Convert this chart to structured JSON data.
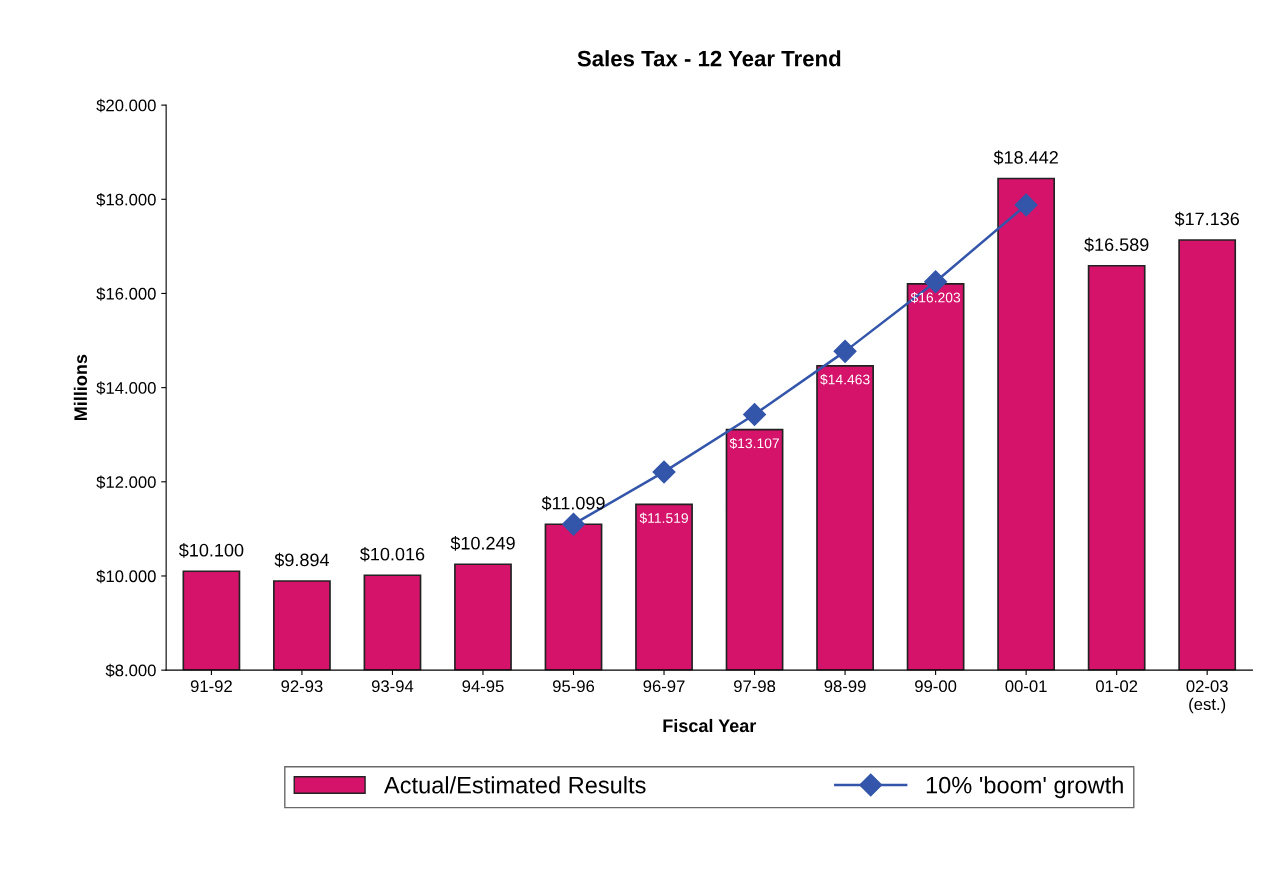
{
  "chart_data": {
    "type": "bar",
    "title": "Sales Tax - 12 Year Trend",
    "xlabel": "Fiscal Year",
    "ylabel": "Millions",
    "categories": [
      "91-92",
      "92-93",
      "93-94",
      "94-95",
      "95-96",
      "96-97",
      "97-98",
      "98-99",
      "99-00",
      "00-01",
      "01-02",
      "02-03\n(est.)"
    ],
    "series": [
      {
        "name": "Actual/Estimated Results",
        "type": "bar",
        "color": "#d5136b",
        "values": [
          10.1,
          9.894,
          10.016,
          10.249,
          11.099,
          11.519,
          13.107,
          14.463,
          16.203,
          18.442,
          16.589,
          17.136
        ],
        "value_labels": [
          "$10.100",
          "$9.894",
          "$10.016",
          "$10.249",
          "$11.099",
          "$11.519",
          "$13.107",
          "$14.463",
          "$16.203",
          "$18.442",
          "$16.589",
          "$17.136"
        ]
      },
      {
        "name": "10% 'boom' growth",
        "type": "line",
        "color": "#3355aa",
        "marker": "diamond",
        "values": [
          null,
          null,
          null,
          null,
          11.1,
          12.21,
          13.43,
          14.77,
          16.25,
          17.88,
          null,
          null
        ]
      }
    ],
    "ylim": [
      8,
      20
    ],
    "yticks": [
      {
        "value": 8,
        "label": "$8.000"
      },
      {
        "value": 10,
        "label": "$10.000"
      },
      {
        "value": 12,
        "label": "$12.000"
      },
      {
        "value": 14,
        "label": "$14.000"
      },
      {
        "value": 16,
        "label": "$16.000"
      },
      {
        "value": 18,
        "label": "$18.000"
      },
      {
        "value": 20,
        "label": "$20.000"
      }
    ],
    "grid": false,
    "legend": "bottom"
  }
}
